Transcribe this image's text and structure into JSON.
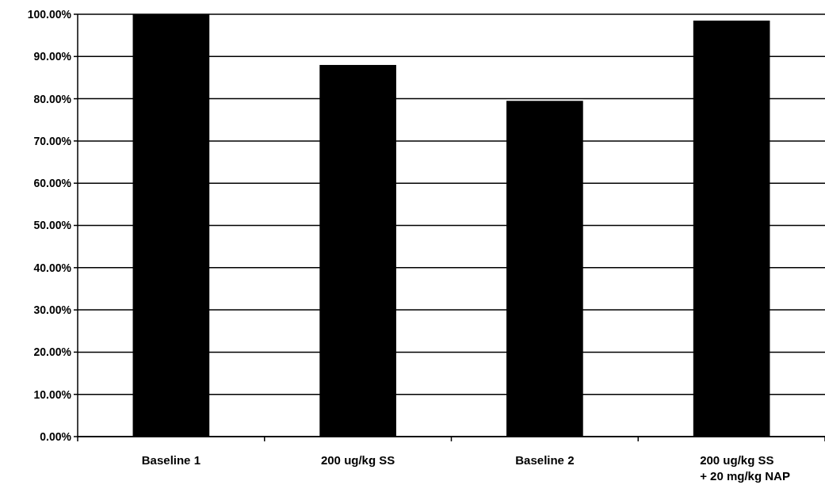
{
  "chart_data": {
    "type": "bar",
    "categories": [
      "Baseline 1",
      "200 ug/kg SS",
      "Baseline 2",
      "200 ug/kg SS\n+ 20 mg/kg NAP"
    ],
    "values": [
      100,
      88,
      79.5,
      98.5
    ],
    "color": "#000000",
    "ylim": [
      0,
      100
    ],
    "yticks": [
      {
        "value": 0,
        "label": "0.00%"
      },
      {
        "value": 10,
        "label": "10.00%"
      },
      {
        "value": 20,
        "label": "20.00%"
      },
      {
        "value": 30,
        "label": "30.00%"
      },
      {
        "value": 40,
        "label": "40.00%"
      },
      {
        "value": 50,
        "label": "50.00%"
      },
      {
        "value": 60,
        "label": "60.00%"
      },
      {
        "value": 70,
        "label": "70.00%"
      },
      {
        "value": 80,
        "label": "80.00%"
      },
      {
        "value": 90,
        "label": "90.00%"
      },
      {
        "value": 100,
        "label": "100.00%"
      }
    ],
    "grid": "y"
  }
}
